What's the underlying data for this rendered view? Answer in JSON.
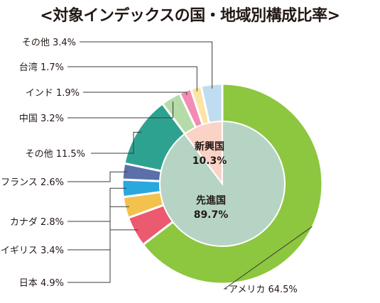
{
  "chart_data": {
    "type": "pie",
    "title": "<対象インデックスの国・地域別構成比率>",
    "outer_ring": [
      {
        "label": "アメリカ 64.5%",
        "value": 64.5,
        "color": "#8dc63f"
      },
      {
        "label": "日本 4.9%",
        "value": 4.9,
        "color": "#eb5a6e"
      },
      {
        "label": "イギリス 3.4%",
        "value": 3.4,
        "color": "#f2c14e"
      },
      {
        "label": "カナダ 2.8%",
        "value": 2.8,
        "color": "#29a8e0"
      },
      {
        "label": "フランス 2.6%",
        "value": 2.6,
        "color": "#5b6fa8"
      },
      {
        "label": "その他 11.5%",
        "value": 11.5,
        "color": "#2ea290"
      },
      {
        "label": "中国 3.2%",
        "value": 3.2,
        "color": "#b5dba9"
      },
      {
        "label": "インド 1.9%",
        "value": 1.9,
        "color": "#f28cb5"
      },
      {
        "label": "台湾 1.7%",
        "value": 1.7,
        "color": "#fde4a4"
      },
      {
        "label": "その他 3.4%",
        "value": 3.4,
        "color": "#bfdcf0"
      }
    ],
    "inner_ring": [
      {
        "name": "先進国",
        "value_label": "89.7%",
        "value": 89.7,
        "color": "#b6d4c4"
      },
      {
        "name": "新興国",
        "value_label": "10.3%",
        "value": 10.3,
        "color": "#fbd3c6"
      }
    ]
  }
}
